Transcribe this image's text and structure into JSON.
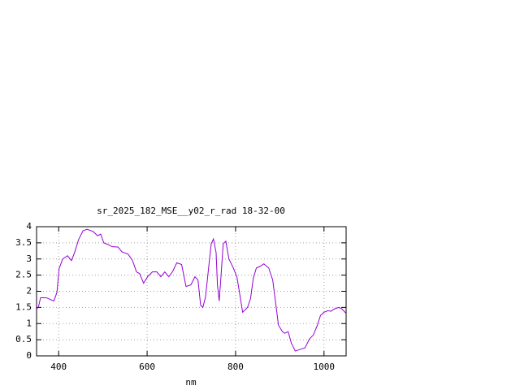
{
  "chart_data": {
    "type": "line",
    "title": "sr_2025_182_MSE__y02_r_rad 18-32-00",
    "x_label": "nm",
    "x": [
      350,
      354,
      359,
      372,
      389,
      396,
      401,
      409,
      420,
      429,
      436,
      445,
      455,
      464,
      478,
      488,
      495,
      502,
      511,
      521,
      534,
      543,
      557,
      567,
      576,
      583,
      592,
      601,
      612,
      622,
      631,
      640,
      649,
      658,
      667,
      678,
      688,
      699,
      708,
      715,
      721,
      726,
      732,
      739,
      745,
      750,
      756,
      759,
      763,
      767,
      772,
      778,
      785,
      794,
      803,
      809,
      816,
      827,
      834,
      840,
      847,
      855,
      864,
      875,
      884,
      891,
      897,
      906,
      911,
      919,
      926,
      935,
      946,
      957,
      967,
      976,
      985,
      992,
      1000,
      1009,
      1016,
      1023,
      1033,
      1040,
      1049
    ],
    "series": [
      {
        "color": "#9400d3",
        "values": [
          1.46,
          1.5,
          1.8,
          1.8,
          1.7,
          1.96,
          2.7,
          3.0,
          3.1,
          2.95,
          3.2,
          3.6,
          3.87,
          3.92,
          3.85,
          3.72,
          3.77,
          3.5,
          3.45,
          3.38,
          3.37,
          3.22,
          3.15,
          2.95,
          2.6,
          2.55,
          2.25,
          2.45,
          2.6,
          2.6,
          2.45,
          2.6,
          2.45,
          2.62,
          2.88,
          2.83,
          2.15,
          2.2,
          2.45,
          2.35,
          1.57,
          1.5,
          1.82,
          2.72,
          3.47,
          3.62,
          3.2,
          2.2,
          1.7,
          2.45,
          3.47,
          3.55,
          3.0,
          2.75,
          2.45,
          1.95,
          1.35,
          1.5,
          1.78,
          2.4,
          2.72,
          2.77,
          2.85,
          2.72,
          2.35,
          1.6,
          0.95,
          0.75,
          0.7,
          0.75,
          0.4,
          0.15,
          0.2,
          0.25,
          0.52,
          0.65,
          0.95,
          1.25,
          1.35,
          1.4,
          1.38,
          1.45,
          1.5,
          1.46,
          1.33
        ]
      }
    ],
    "xlim": [
      350,
      1050
    ],
    "ylim": [
      0,
      4
    ],
    "xticks": [
      400,
      600,
      800,
      1000
    ],
    "yticks": [
      0,
      0.5,
      1,
      1.5,
      2,
      2.5,
      3,
      3.5,
      4
    ],
    "grid": true
  }
}
